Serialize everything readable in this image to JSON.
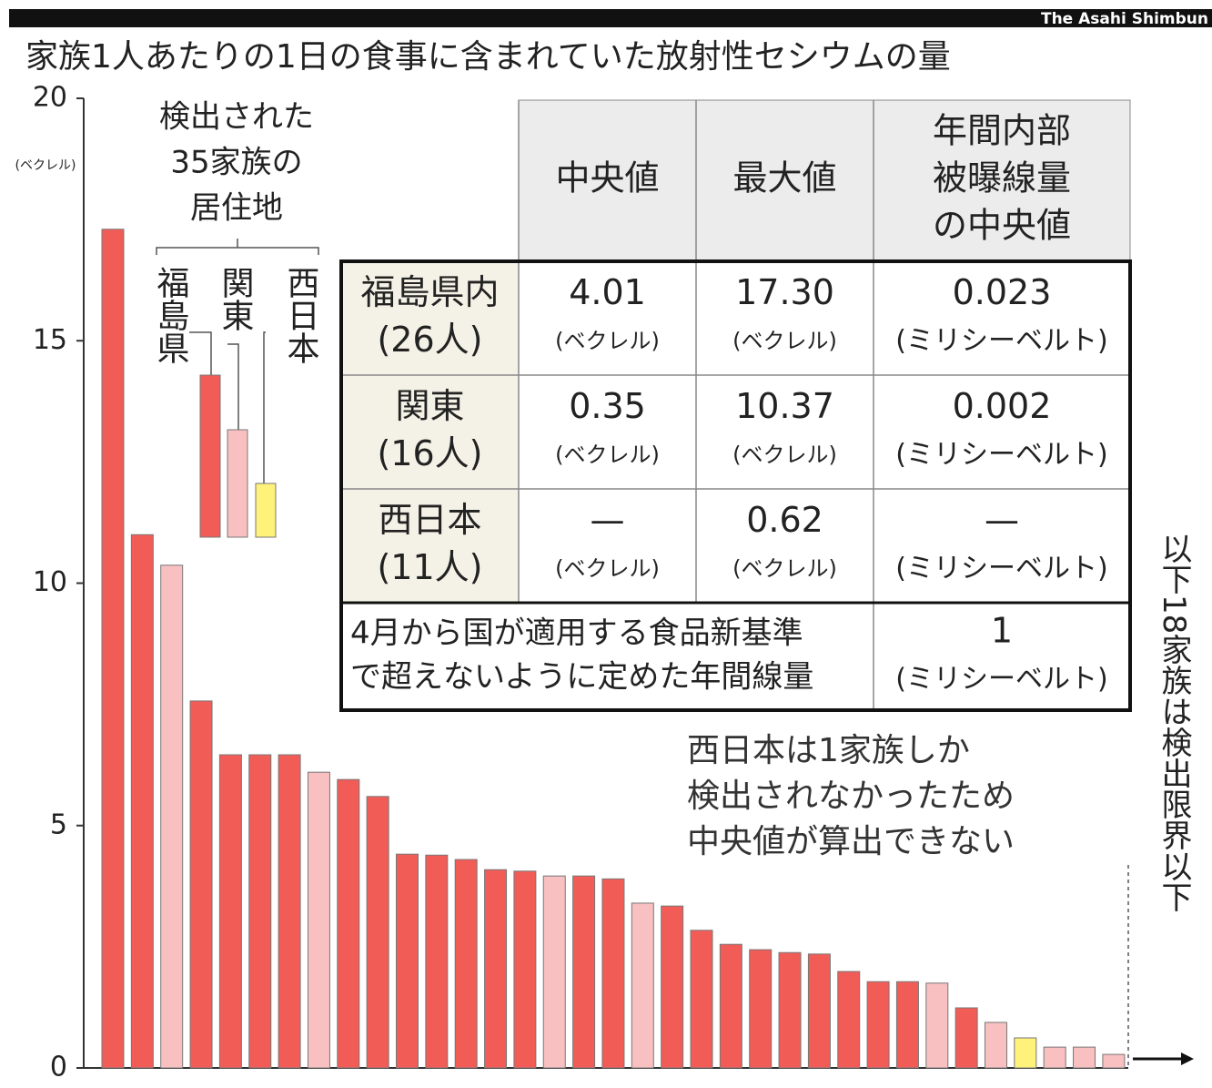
{
  "source": "The Asahi Shimbun",
  "chart_data": {
    "type": "bar",
    "title": "家族1人あたりの1日の食事に含まれていた放射性セシウムの量",
    "y_label": "(ベクレル)",
    "ylim": [
      0,
      20
    ],
    "yticks": [
      0,
      5,
      10,
      15,
      20
    ],
    "values": [
      17.3,
      11.0,
      10.37,
      7.57,
      6.46,
      6.46,
      6.46,
      6.1,
      5.95,
      5.6,
      4.41,
      4.39,
      4.3,
      4.09,
      4.06,
      3.96,
      3.96,
      3.9,
      3.4,
      3.34,
      2.84,
      2.55,
      2.44,
      2.38,
      2.35,
      1.99,
      1.78,
      1.78,
      1.75,
      1.24,
      0.94,
      0.62,
      0.43,
      0.43,
      0.28
    ],
    "colors": [
      "#f25c57",
      "#f25c57",
      "#f8c0c0",
      "#f25c57",
      "#f25c57",
      "#f25c57",
      "#f25c57",
      "#f8c0c0",
      "#f25c57",
      "#f25c57",
      "#f25c57",
      "#f25c57",
      "#f25c57",
      "#f25c57",
      "#f25c57",
      "#f8c0c0",
      "#f25c57",
      "#f25c57",
      "#f8c0c0",
      "#f25c57",
      "#f25c57",
      "#f25c57",
      "#f25c57",
      "#f25c57",
      "#f25c57",
      "#f25c57",
      "#f25c57",
      "#f25c57",
      "#f8c0c0",
      "#f25c57",
      "#f8c0c0",
      "#fff27a",
      "#f8c0c0",
      "#f8c0c0",
      "#f8c0c0"
    ],
    "legend_title": [
      "検出された",
      "35家族の",
      "居住地"
    ],
    "legend": [
      {
        "name": "福島県",
        "color": "#f25c57"
      },
      {
        "name": "関東",
        "color": "#f8c0c0"
      },
      {
        "name": "西日本",
        "color": "#fff27a"
      }
    ],
    "note": [
      "西日本は1家族しか",
      "検出されなかったため",
      "中央値が算出できない"
    ],
    "side_note": "以下18家族は検出限界以下"
  },
  "table": {
    "header": [
      [
        "中央値"
      ],
      [
        "最大値"
      ],
      [
        "年間内部",
        "被曝線量",
        "の中央値"
      ]
    ],
    "rows": [
      {
        "label": [
          "福島県内",
          "(26人)"
        ],
        "cells": [
          [
            "4.01",
            "(ベクレル)"
          ],
          [
            "17.30",
            "(ベクレル)"
          ],
          [
            "0.023",
            "(ミリシーベルト)"
          ]
        ]
      },
      {
        "label": [
          "関東",
          "(16人)"
        ],
        "cells": [
          [
            "0.35",
            "(ベクレル)"
          ],
          [
            "10.37",
            "(ベクレル)"
          ],
          [
            "0.002",
            "(ミリシーベルト)"
          ]
        ]
      },
      {
        "label": [
          "西日本",
          "(11人)"
        ],
        "cells": [
          [
            "—",
            "(ベクレル)"
          ],
          [
            "0.62",
            "(ベクレル)"
          ],
          [
            "—",
            "(ミリシーベルト)"
          ]
        ]
      }
    ],
    "footer": {
      "label": [
        "4月から国が適用する食品新基準",
        "で超えないように定めた年間線量"
      ],
      "value": [
        "1",
        "(ミリシーベルト)"
      ]
    }
  }
}
